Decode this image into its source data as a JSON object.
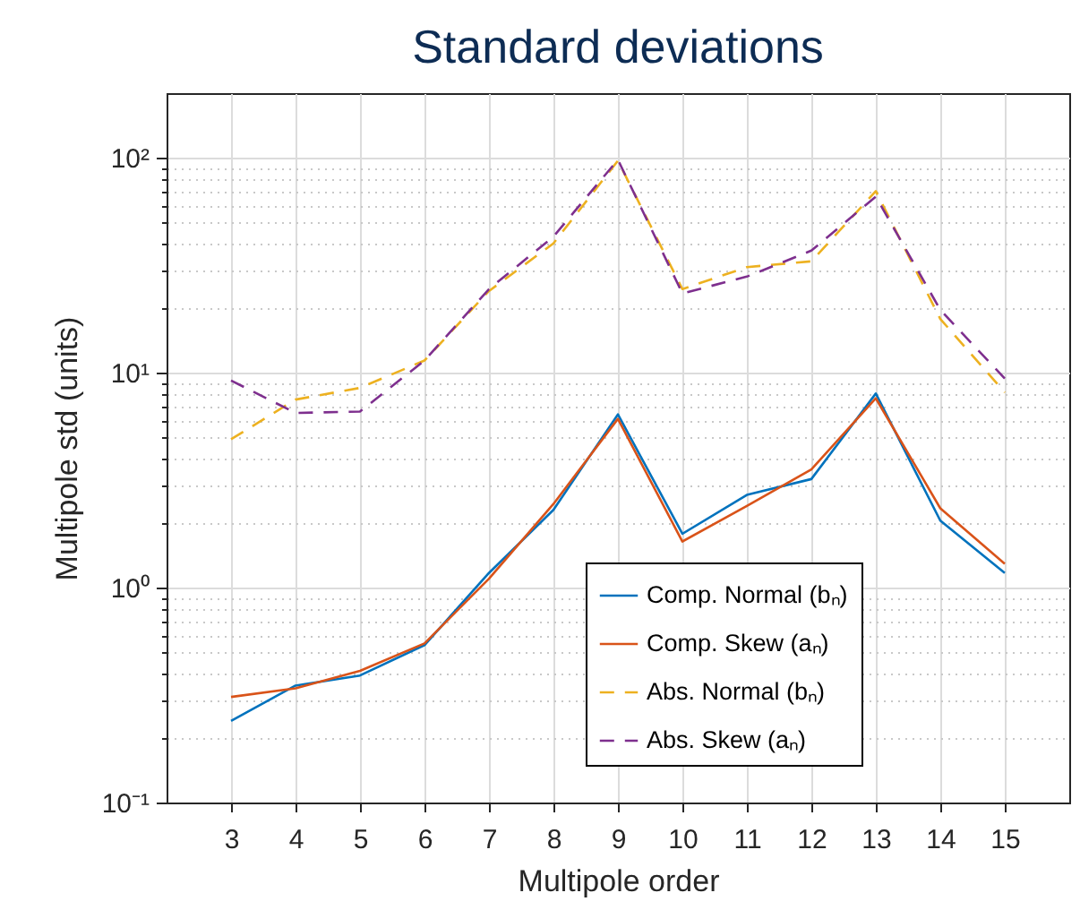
{
  "chart_data": {
    "type": "line",
    "title": "Standard deviations",
    "xlabel": "Multipole order",
    "ylabel": "Multipole std (units)",
    "x": [
      3,
      4,
      5,
      6,
      7,
      8,
      9,
      10,
      11,
      12,
      13,
      14,
      15
    ],
    "series": [
      {
        "name": "Comp. Normal (bₙ)",
        "color": "#0072bd",
        "line_style": "solid",
        "values": [
          0.24,
          0.35,
          0.39,
          0.54,
          1.17,
          2.3,
          6.4,
          1.78,
          2.7,
          3.2,
          8.0,
          2.05,
          1.17
        ]
      },
      {
        "name": "Comp. Skew (aₙ)",
        "color": "#d95319",
        "line_style": "solid",
        "values": [
          0.31,
          0.34,
          0.41,
          0.55,
          1.1,
          2.45,
          6.1,
          1.64,
          2.4,
          3.55,
          7.6,
          2.34,
          1.29
        ]
      },
      {
        "name": "Abs. Normal (bₙ)",
        "color": "#edb120",
        "line_style": "dashed",
        "values": [
          4.9,
          7.5,
          8.5,
          11.4,
          24,
          40,
          97,
          24.5,
          31,
          33,
          70,
          17.8,
          8.1
        ]
      },
      {
        "name": "Abs. Skew (aₙ)",
        "color": "#7e2f8e",
        "line_style": "dashed",
        "values": [
          9.2,
          6.5,
          6.6,
          11.4,
          24.5,
          43,
          98,
          23.4,
          28,
          37,
          66,
          19.6,
          9.4
        ]
      }
    ],
    "log": true,
    "xlim": [
      2,
      16
    ],
    "xticks": [
      3,
      4,
      5,
      6,
      7,
      8,
      9,
      10,
      11,
      12,
      13,
      14,
      15
    ],
    "ylim": [
      0.1,
      200
    ],
    "yticks": [
      {
        "value": 0.1,
        "label": "10⁻¹"
      },
      {
        "value": 0.2,
        "label": null
      },
      {
        "value": 0.3,
        "label": null
      },
      {
        "value": 0.4,
        "label": null
      },
      {
        "value": 0.5,
        "label": null
      },
      {
        "value": 0.6,
        "label": null
      },
      {
        "value": 0.7,
        "label": null
      },
      {
        "value": 0.8,
        "label": null
      },
      {
        "value": 0.9,
        "label": null
      },
      {
        "value": 1,
        "label": "10⁰"
      },
      {
        "value": 2,
        "label": null
      },
      {
        "value": 3,
        "label": null
      },
      {
        "value": 4,
        "label": null
      },
      {
        "value": 5,
        "label": null
      },
      {
        "value": 6,
        "label": null
      },
      {
        "value": 7,
        "label": null
      },
      {
        "value": 8,
        "label": null
      },
      {
        "value": 9,
        "label": null
      },
      {
        "value": 10,
        "label": "10¹"
      },
      {
        "value": 20,
        "label": null
      },
      {
        "value": 30,
        "label": null
      },
      {
        "value": 40,
        "label": null
      },
      {
        "value": 50,
        "label": null
      },
      {
        "value": 60,
        "label": null
      },
      {
        "value": 70,
        "label": null
      },
      {
        "value": 80,
        "label": null
      },
      {
        "value": 90,
        "label": null
      },
      {
        "value": 100,
        "label": "10²"
      }
    ],
    "grid": true,
    "legend": "bottom right",
    "marker": "none"
  }
}
